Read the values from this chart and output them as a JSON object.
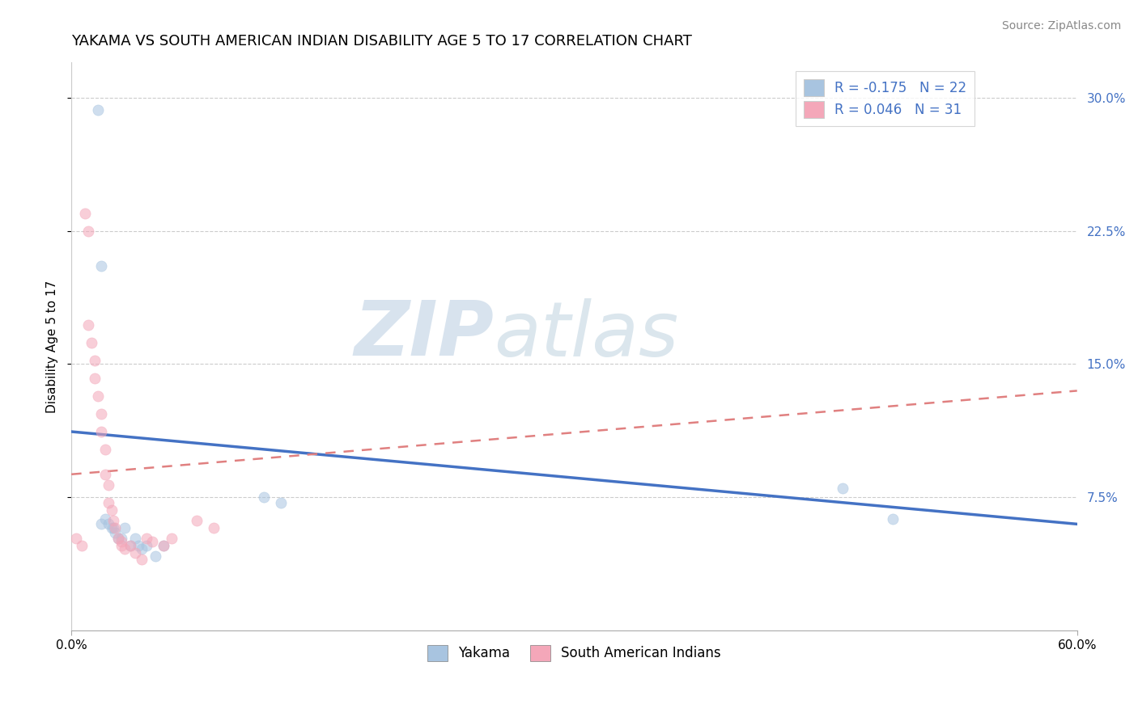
{
  "title": "YAKAMA VS SOUTH AMERICAN INDIAN DISABILITY AGE 5 TO 17 CORRELATION CHART",
  "source": "Source: ZipAtlas.com",
  "ylabel": "Disability Age 5 to 17",
  "watermark_zip": "ZIP",
  "watermark_atlas": "atlas",
  "xlim": [
    0.0,
    0.6
  ],
  "ylim": [
    0.0,
    0.32
  ],
  "x_tick_labels": [
    "0.0%",
    "60.0%"
  ],
  "y_ticks_right": [
    0.075,
    0.15,
    0.225,
    0.3
  ],
  "y_tick_labels_right": [
    "7.5%",
    "15.0%",
    "22.5%",
    "30.0%"
  ],
  "legend_entries": [
    {
      "label": "Yakama",
      "color": "#a8c4e0",
      "R": "-0.175",
      "N": "22"
    },
    {
      "label": "South American Indians",
      "color": "#f4a7b9",
      "R": "0.046",
      "N": "31"
    }
  ],
  "yakama_scatter_x": [
    0.016,
    0.018,
    0.018,
    0.02,
    0.022,
    0.024,
    0.025,
    0.026,
    0.028,
    0.03,
    0.032,
    0.035,
    0.038,
    0.04,
    0.042,
    0.045,
    0.05,
    0.055,
    0.115,
    0.125,
    0.46,
    0.49
  ],
  "yakama_scatter_y": [
    0.293,
    0.205,
    0.06,
    0.063,
    0.06,
    0.058,
    0.058,
    0.055,
    0.052,
    0.052,
    0.058,
    0.048,
    0.052,
    0.048,
    0.046,
    0.048,
    0.042,
    0.048,
    0.075,
    0.072,
    0.08,
    0.063
  ],
  "south_american_scatter_x": [
    0.003,
    0.006,
    0.008,
    0.01,
    0.01,
    0.012,
    0.014,
    0.014,
    0.016,
    0.018,
    0.018,
    0.02,
    0.02,
    0.022,
    0.022,
    0.024,
    0.025,
    0.026,
    0.028,
    0.03,
    0.03,
    0.032,
    0.035,
    0.038,
    0.042,
    0.045,
    0.048,
    0.055,
    0.06,
    0.075,
    0.085
  ],
  "south_american_scatter_y": [
    0.052,
    0.048,
    0.235,
    0.225,
    0.172,
    0.162,
    0.152,
    0.142,
    0.132,
    0.122,
    0.112,
    0.102,
    0.088,
    0.082,
    0.072,
    0.068,
    0.062,
    0.058,
    0.052,
    0.05,
    0.048,
    0.046,
    0.048,
    0.044,
    0.04,
    0.052,
    0.05,
    0.048,
    0.052,
    0.062,
    0.058
  ],
  "yakama_line_x": [
    0.0,
    0.6
  ],
  "yakama_line_y": [
    0.112,
    0.06
  ],
  "south_american_line_x": [
    0.0,
    0.6
  ],
  "south_american_line_y": [
    0.088,
    0.135
  ],
  "grid_color": "#cccccc",
  "background_color": "#ffffff",
  "scatter_alpha": 0.55,
  "scatter_size": 90,
  "yakama_line_color": "#4472c4",
  "sa_line_color": "#e08080"
}
